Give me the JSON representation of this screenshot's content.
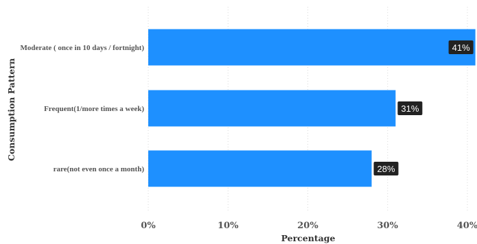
{
  "chart_data": {
    "type": "bar",
    "orientation": "horizontal",
    "categories": [
      "Moderate ( once in 10 days / fortnight)",
      "Frequent(1/more times a week)",
      "rare(not even once a month)"
    ],
    "values": [
      41,
      31,
      28
    ],
    "data_labels": [
      "41%",
      "31%",
      "28%"
    ],
    "xlabel": "Percentage",
    "ylabel": "Consumption Pattern",
    "xlim": [
      0,
      40
    ],
    "xticks": [
      "0%",
      "10%",
      "20%",
      "30%",
      "40%"
    ],
    "grid": true,
    "colors": {
      "bar": "#1E90FF",
      "label_bg": "#222222"
    }
  }
}
